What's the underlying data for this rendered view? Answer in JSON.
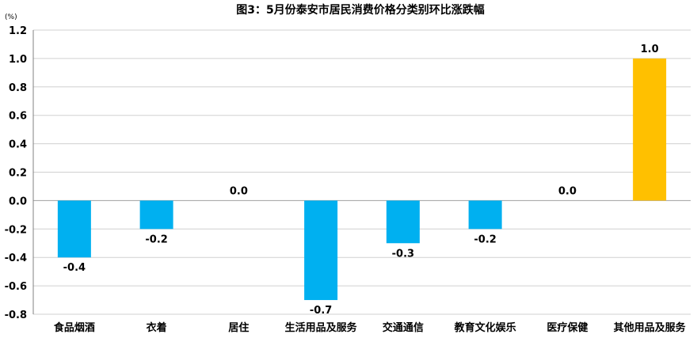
{
  "chart_data": {
    "type": "bar",
    "title": "图3：5月份泰安市居民消费价格分类别环比涨跌幅",
    "unit_label": "(%)",
    "categories": [
      "食品烟酒",
      "衣着",
      "居住",
      "生活用品及服务",
      "交通通信",
      "教育文化娱乐",
      "医疗保健",
      "其他用品及服务"
    ],
    "values": [
      -0.4,
      -0.2,
      0.0,
      -0.7,
      -0.3,
      -0.2,
      0.0,
      1.0
    ],
    "value_labels": [
      "-0.4",
      "-0.2",
      "0.0",
      "-0.7",
      "-0.3",
      "-0.2",
      "0.0",
      "1.0"
    ],
    "ylim": [
      -0.8,
      1.2
    ],
    "yticks": [
      1.2,
      1.0,
      0.8,
      0.6,
      0.4,
      0.2,
      0.0,
      -0.2,
      -0.4,
      -0.6,
      -0.8
    ],
    "ytick_labels": [
      "1.2",
      "1.0",
      "0.8",
      "0.6",
      "0.4",
      "0.2",
      "0.0",
      "-0.2",
      "-0.4",
      "-0.6",
      "-0.8"
    ],
    "grid": true,
    "legend": "none",
    "colors": {
      "negative": "#00b0f0",
      "positive": "#ffc000"
    }
  }
}
